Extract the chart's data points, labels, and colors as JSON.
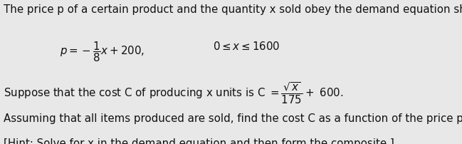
{
  "bg_color": "#e8e8e8",
  "text_color": "#111111",
  "line1": "The price p of a certain product and the quantity x sold obey the demand equation shown.",
  "line4": "Assuming that all items produced are sold, find the cost C as a function of the price p.",
  "line5": "[Hint: Solve for x in the demand equation and then form the composite.]",
  "fontsize": 10.8,
  "fig_width": 6.49,
  "fig_height": 2.02,
  "dpi": 100
}
